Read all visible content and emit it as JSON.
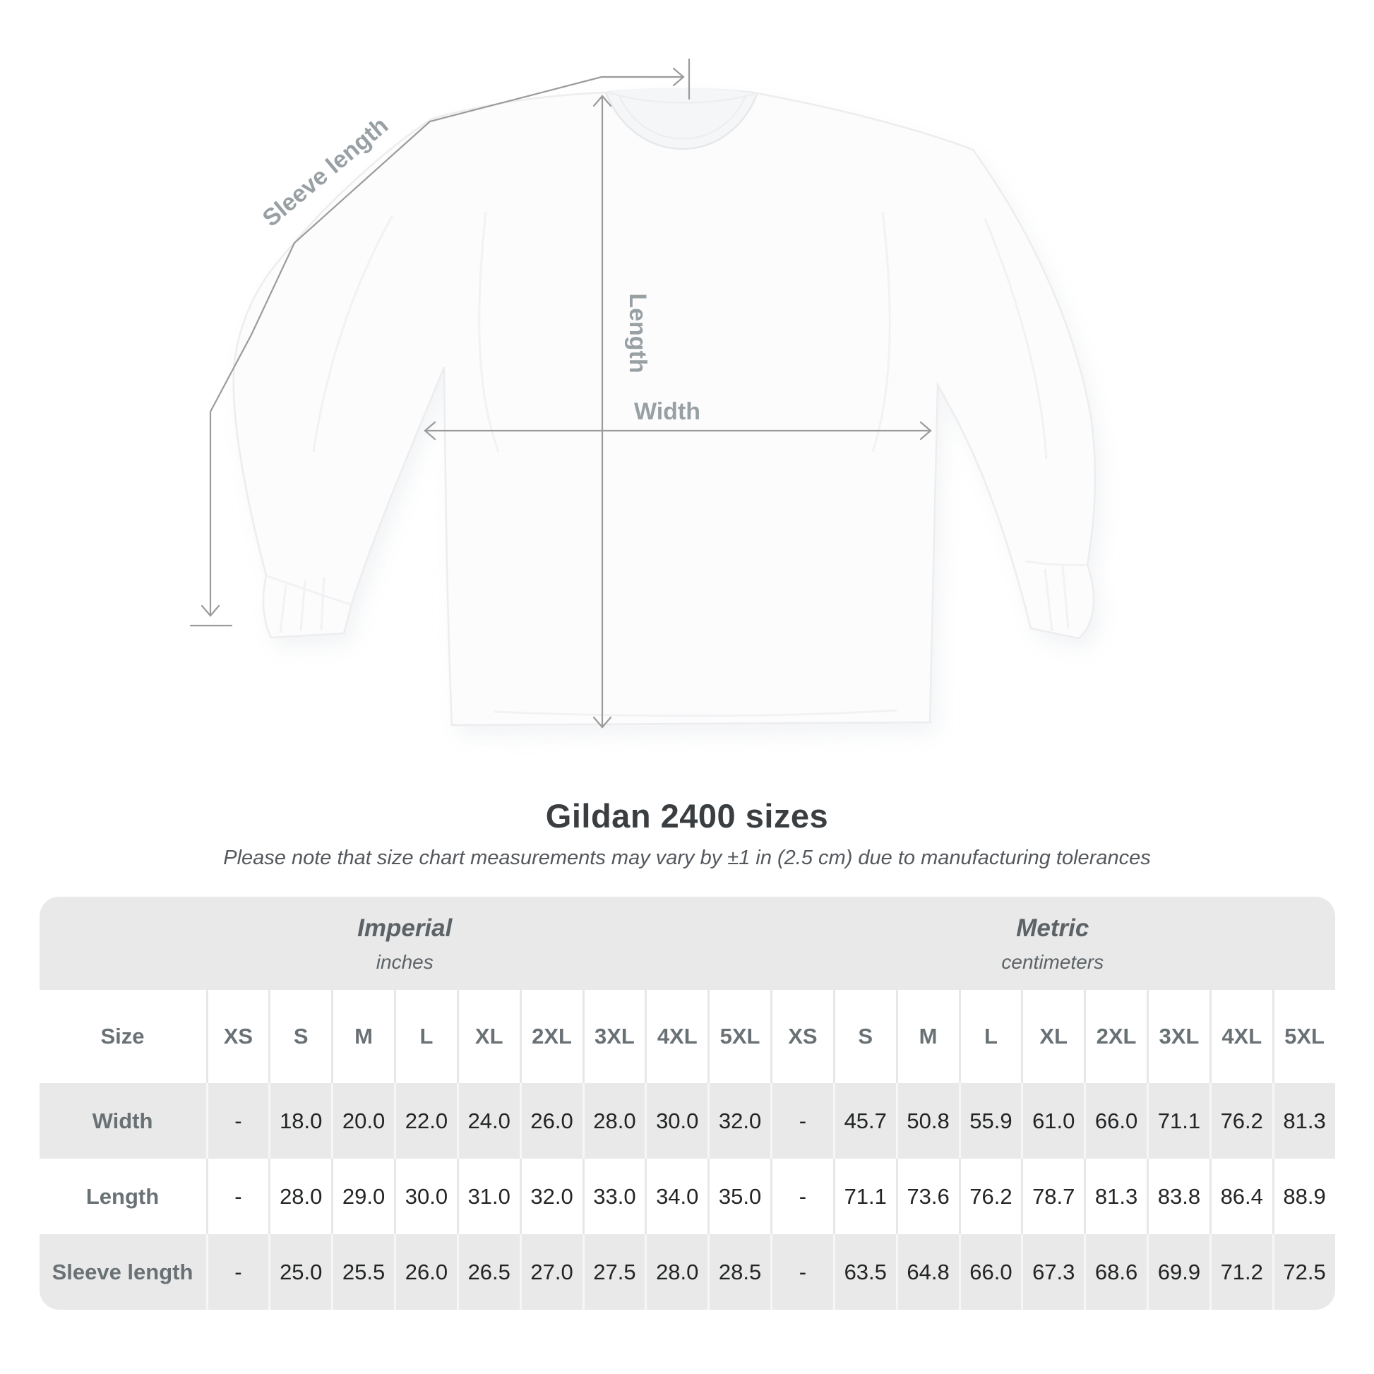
{
  "diagram": {
    "sleeve_length_label": "Sleeve length",
    "length_label": "Length",
    "width_label": "Width",
    "shirt": "white long-sleeve t-shirt front view",
    "colors": {
      "measure_line": "#9b9b9b",
      "measure_label": "#99a0a4",
      "shirt_fill": "#fcfcfd",
      "shirt_shadow": "#e6e9ec"
    }
  },
  "header": {
    "title": "Gildan 2400 sizes",
    "subtitle": "Please note that size chart measurements may vary by ±1 in (2.5 cm) due to manufacturing tolerances"
  },
  "table": {
    "size_column_label": "Size",
    "groups": [
      {
        "name": "Imperial",
        "unit": "inches"
      },
      {
        "name": "Metric",
        "unit": "centimeters"
      }
    ],
    "sizes": [
      "XS",
      "S",
      "M",
      "L",
      "XL",
      "2XL",
      "3XL",
      "4XL",
      "5XL"
    ],
    "rows": [
      {
        "label": "Width",
        "imperial": [
          "-",
          "18.0",
          "20.0",
          "22.0",
          "24.0",
          "26.0",
          "28.0",
          "30.0",
          "32.0"
        ],
        "metric": [
          "-",
          "45.7",
          "50.8",
          "55.9",
          "61.0",
          "66.0",
          "71.1",
          "76.2",
          "81.3"
        ]
      },
      {
        "label": "Length",
        "imperial": [
          "-",
          "28.0",
          "29.0",
          "30.0",
          "31.0",
          "32.0",
          "33.0",
          "34.0",
          "35.0"
        ],
        "metric": [
          "-",
          "71.1",
          "73.6",
          "76.2",
          "78.7",
          "81.3",
          "83.8",
          "86.4",
          "88.9"
        ]
      },
      {
        "label": "Sleeve length",
        "imperial": [
          "-",
          "25.0",
          "25.5",
          "26.0",
          "26.5",
          "27.0",
          "27.5",
          "28.0",
          "28.5"
        ],
        "metric": [
          "-",
          "63.5",
          "64.8",
          "66.0",
          "67.3",
          "68.6",
          "69.9",
          "71.2",
          "72.5"
        ]
      }
    ]
  },
  "chart_data": {
    "type": "table",
    "title": "Gildan 2400 sizes",
    "note": "Please note that size chart measurements may vary by ±1 in (2.5 cm) due to manufacturing tolerances",
    "column_groups": [
      "Imperial (inches)",
      "Metric (centimeters)"
    ],
    "sizes": [
      "XS",
      "S",
      "M",
      "L",
      "XL",
      "2XL",
      "3XL",
      "4XL",
      "5XL"
    ],
    "rows": [
      {
        "measurement": "Width",
        "imperial_in": [
          null,
          18.0,
          20.0,
          22.0,
          24.0,
          26.0,
          28.0,
          30.0,
          32.0
        ],
        "metric_cm": [
          null,
          45.7,
          50.8,
          55.9,
          61.0,
          66.0,
          71.1,
          76.2,
          81.3
        ]
      },
      {
        "measurement": "Length",
        "imperial_in": [
          null,
          28.0,
          29.0,
          30.0,
          31.0,
          32.0,
          33.0,
          34.0,
          35.0
        ],
        "metric_cm": [
          null,
          71.1,
          73.6,
          76.2,
          78.7,
          81.3,
          83.8,
          86.4,
          88.9
        ]
      },
      {
        "measurement": "Sleeve length",
        "imperial_in": [
          null,
          25.0,
          25.5,
          26.0,
          26.5,
          27.0,
          27.5,
          28.0,
          28.5
        ],
        "metric_cm": [
          null,
          63.5,
          64.8,
          66.0,
          67.3,
          68.6,
          69.9,
          71.2,
          72.5
        ]
      }
    ]
  }
}
